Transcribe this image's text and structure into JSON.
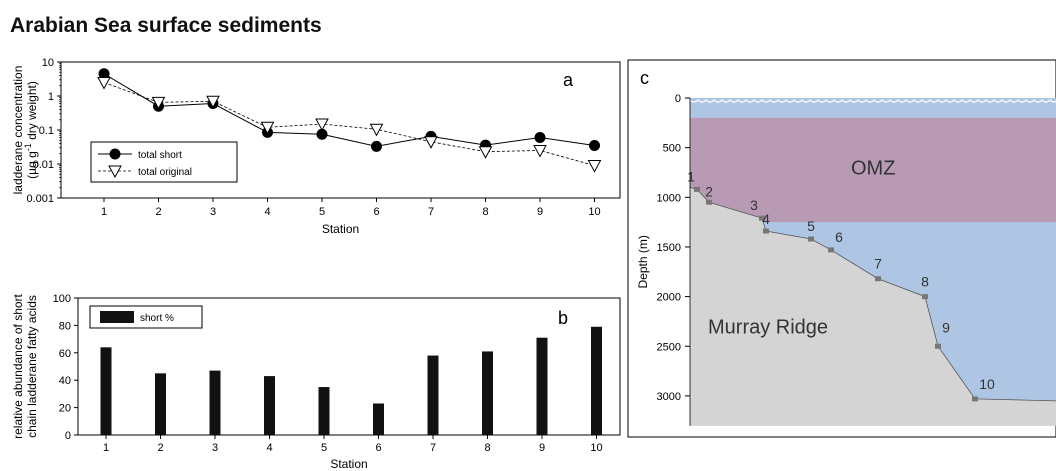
{
  "title": "Arabian Sea surface sediments",
  "chart_data": [
    {
      "panel": "a",
      "type": "line",
      "ylabel_line1": "ladderane concentration",
      "ylabel_line2_prefix": "(µg g",
      "ylabel_line2_sup": "-1",
      "ylabel_line2_suffix": " dry weight)",
      "xlabel": "Station",
      "yscale": "log",
      "ylim": [
        0.001,
        10
      ],
      "yticks": [
        "0.001",
        "0.01",
        "0.1",
        "1",
        "10"
      ],
      "x": [
        1,
        2,
        3,
        4,
        5,
        6,
        7,
        8,
        9,
        10
      ],
      "series": [
        {
          "name": "total short",
          "marker": "filled-circle",
          "style": "solid",
          "values": [
            4.5,
            0.5,
            0.6,
            0.085,
            0.075,
            0.033,
            0.065,
            0.036,
            0.06,
            0.035
          ]
        },
        {
          "name": "total original",
          "marker": "open-triangle",
          "style": "dashed",
          "values": [
            2.5,
            0.65,
            0.7,
            0.12,
            0.15,
            0.105,
            0.045,
            0.023,
            0.025,
            0.009
          ]
        }
      ],
      "legend": "bottom-left"
    },
    {
      "panel": "b",
      "type": "bar",
      "ylabel_line1": "relative abundance of short",
      "ylabel_line2": "chain ladderane fatty acids",
      "xlabel": "Station",
      "ylim": [
        0,
        100
      ],
      "yticks": [
        "0",
        "20",
        "40",
        "60",
        "80",
        "100"
      ],
      "categories": [
        "1",
        "2",
        "3",
        "4",
        "5",
        "6",
        "7",
        "8",
        "9",
        "10"
      ],
      "series": [
        {
          "name": "short %",
          "values": [
            64,
            45,
            47,
            43,
            35,
            23,
            58,
            61,
            71,
            79
          ]
        }
      ],
      "legend": "top-left"
    },
    {
      "panel": "c",
      "type": "diagram",
      "ylabel": "Depth (m)",
      "ylim": [
        3300,
        0
      ],
      "yticks": [
        "0",
        "500",
        "1000",
        "1500",
        "2000",
        "2500",
        "3000"
      ],
      "omz_label": "OMZ",
      "omz_depth_range": [
        200,
        1250
      ],
      "ridge_label": "Murray Ridge",
      "stations": [
        {
          "label": "1",
          "depth": 920
        },
        {
          "label": "2",
          "depth": 1050
        },
        {
          "label": "3",
          "depth": 1210
        },
        {
          "label": "4",
          "depth": 1340
        },
        {
          "label": "5",
          "depth": 1420
        },
        {
          "label": "6",
          "depth": 1530
        },
        {
          "label": "7",
          "depth": 1820
        },
        {
          "label": "8",
          "depth": 2000
        },
        {
          "label": "9",
          "depth": 2500
        },
        {
          "label": "10",
          "depth": 3030
        }
      ],
      "colors": {
        "water": "#aec6e3",
        "omz": "#b89ab5",
        "ridge": "#d4d4d4",
        "marker": "#777777"
      }
    }
  ]
}
